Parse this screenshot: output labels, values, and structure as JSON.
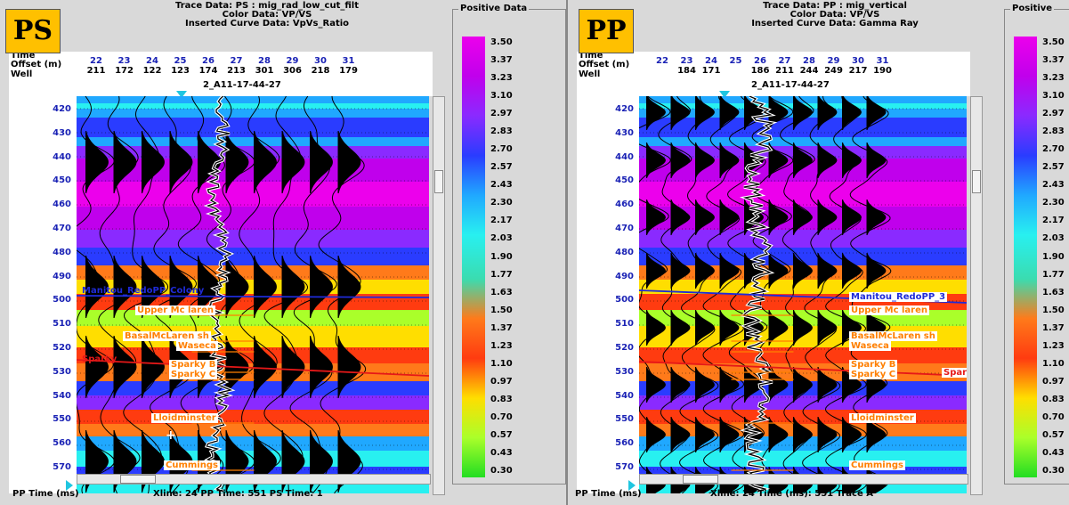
{
  "colors": {
    "ramp": [
      "#ec00ec",
      "#c000ec",
      "#8a2aff",
      "#2a3cff",
      "#20a8ff",
      "#28f0f0",
      "#3adcb0",
      "#ff7a1a",
      "#ff3b10",
      "#ffde00",
      "#aaff2a",
      "#22dd22"
    ],
    "wiggle": "#000000",
    "horizon_orange": "#ff7f00",
    "horizon_blue": "#1f2bd8",
    "horizon_red": "#e61818"
  },
  "panels": [
    {
      "badge": "PS",
      "header": {
        "trace_line": "Trace Data: PS : mig_rad_low_cut_filt",
        "color_line": "Color Data: VP/VS",
        "curve_line": "Inserted Curve Data:  VpVs_Ratio"
      },
      "axis_labels": {
        "time": "Time",
        "offset": "Offset (m)",
        "well": "Well"
      },
      "traces": [
        "22",
        "23",
        "24",
        "25",
        "26",
        "27",
        "28",
        "29",
        "30",
        "31"
      ],
      "offsets": [
        "211",
        "172",
        "122",
        "123",
        "174",
        "213",
        "301",
        "306",
        "218",
        "179"
      ],
      "well_label": "2_A11-17-44-27",
      "time_ticks": [
        "420",
        "430",
        "440",
        "450",
        "460",
        "470",
        "480",
        "490",
        "500",
        "510",
        "520",
        "530",
        "540",
        "550",
        "560",
        "570"
      ],
      "horizons": [
        {
          "name": "Manitou_RedoPP_Colony",
          "style": "blue"
        },
        {
          "name": "Upper Mc laren",
          "style": "boxed"
        },
        {
          "name": "BasalMcLaren sh",
          "style": "boxed"
        },
        {
          "name": "Waseca",
          "style": "boxed"
        },
        {
          "name": "Sparky",
          "style": "red"
        },
        {
          "name": "Sparky B",
          "style": "boxed"
        },
        {
          "name": "Sparky C",
          "style": "boxed"
        },
        {
          "name": "Lloidminster",
          "style": "boxed"
        },
        {
          "name": "Cummings",
          "style": "boxed"
        }
      ],
      "status": {
        "left": "PP Time (ms)",
        "right": "Xline: 24  PP Time: 551  PS Time: 1"
      },
      "legend": {
        "title": "Positive Data",
        "values": [
          "3.50",
          "3.37",
          "3.23",
          "3.10",
          "2.97",
          "2.83",
          "2.70",
          "2.57",
          "2.43",
          "2.30",
          "2.17",
          "2.03",
          "1.90",
          "1.77",
          "1.63",
          "1.50",
          "1.37",
          "1.23",
          "1.10",
          "0.97",
          "0.83",
          "0.70",
          "0.57",
          "0.43",
          "0.30"
        ]
      }
    },
    {
      "badge": "PP",
      "header": {
        "trace_line": "Trace Data: PP : mig_vertical",
        "color_line": "Color Data: VP/VS",
        "curve_line": "Inserted Curve Data:  Gamma Ray"
      },
      "axis_labels": {
        "time": "Time",
        "offset": "Offset (m)",
        "well": "Well"
      },
      "traces": [
        "22",
        "23",
        "24",
        "25",
        "26",
        "27",
        "28",
        "29",
        "30",
        "31"
      ],
      "offsets": [
        "",
        "184",
        "171",
        "",
        "186",
        "211",
        "244",
        "249",
        "217",
        "190"
      ],
      "well_label": "2_A11-17-44-27",
      "time_ticks": [
        "420",
        "430",
        "440",
        "450",
        "460",
        "470",
        "480",
        "490",
        "500",
        "510",
        "520",
        "530",
        "540",
        "550",
        "560",
        "570"
      ],
      "horizons": [
        {
          "name": "Manitou_RedoPP_3",
          "style": "blue"
        },
        {
          "name": "Upper Mc laren",
          "style": "boxed"
        },
        {
          "name": "BasalMcLaren sh",
          "style": "boxed"
        },
        {
          "name": "Waseca",
          "style": "boxed"
        },
        {
          "name": "Sparky B",
          "style": "boxed"
        },
        {
          "name": "Sparky C",
          "style": "boxed"
        },
        {
          "name": "Sparky",
          "style": "redbox"
        },
        {
          "name": "Lloidminster",
          "style": "boxed"
        },
        {
          "name": "Cummings",
          "style": "boxed"
        }
      ],
      "status": {
        "left": "PP Time (ms)",
        "right": "Xline: 24  Time (ms): 551  Trace A"
      },
      "legend": {
        "title": "Positive",
        "values": [
          "3.50",
          "3.37",
          "3.23",
          "3.10",
          "2.97",
          "2.83",
          "2.70",
          "2.57",
          "2.43",
          "2.30",
          "2.17",
          "2.03",
          "1.90",
          "1.77",
          "1.63",
          "1.50",
          "1.37",
          "1.23",
          "1.10",
          "0.97",
          "0.83",
          "0.70",
          "0.57",
          "0.43",
          "0.30"
        ]
      }
    }
  ]
}
